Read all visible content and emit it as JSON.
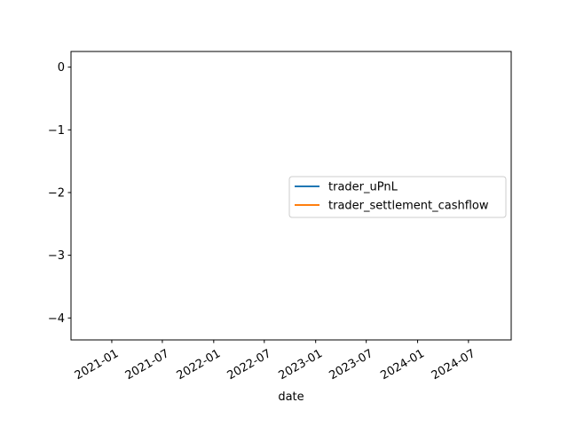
{
  "chart_data": {
    "type": "line",
    "title": "",
    "xlabel": "date",
    "ylabel": "",
    "x_type": "date",
    "xlim": [
      "2020-08-08",
      "2024-12-01"
    ],
    "ylim": [
      -4.35,
      0.25
    ],
    "x_ticks": [
      {
        "date": "2021-01-01",
        "label": "2021-01"
      },
      {
        "date": "2021-07-01",
        "label": "2021-07"
      },
      {
        "date": "2022-01-01",
        "label": "2022-01"
      },
      {
        "date": "2022-07-01",
        "label": "2022-07"
      },
      {
        "date": "2023-01-01",
        "label": "2023-01"
      },
      {
        "date": "2023-07-01",
        "label": "2023-07"
      },
      {
        "date": "2024-01-01",
        "label": "2024-01"
      },
      {
        "date": "2024-07-01",
        "label": "2024-07"
      }
    ],
    "y_ticks": [
      {
        "value": 0,
        "label": "0"
      },
      {
        "value": -1,
        "label": "−1"
      },
      {
        "value": -2,
        "label": "−2"
      },
      {
        "value": -3,
        "label": "−3"
      },
      {
        "value": -4,
        "label": "−4"
      }
    ],
    "grid": false,
    "legend_position": "center-right",
    "series": [
      {
        "name": "trader_uPnL",
        "color": "#1f77b4",
        "points": []
      },
      {
        "name": "trader_settlement_cashflow",
        "color": "#ff7f0e",
        "points": []
      }
    ]
  }
}
